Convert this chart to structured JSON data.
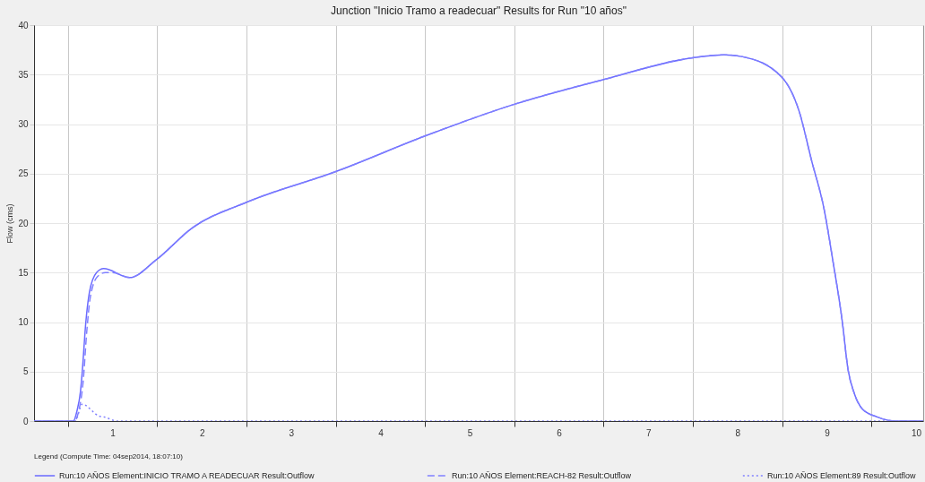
{
  "chart_data": {
    "type": "line",
    "title": "Junction \"Inicio Tramo a readecuar\" Results for Run \"10 años\"",
    "ylabel": "Flow (cms)",
    "legend_title": "Legend (Compute Time: 04sep2014, 18:07:10)",
    "legend": "bottom",
    "grid": true,
    "xlim": [
      0.12,
      10.08
    ],
    "ylim": [
      0,
      40
    ],
    "xticks": [
      {
        "value": 0.5,
        "label": null
      },
      1,
      {
        "value": 1.5,
        "label": null
      },
      2,
      {
        "value": 2.5,
        "label": null
      },
      3,
      {
        "value": 3.5,
        "label": null
      },
      4,
      {
        "value": 4.5,
        "label": null
      },
      5,
      {
        "value": 5.5,
        "label": null
      },
      6,
      {
        "value": 6.5,
        "label": null
      },
      7,
      {
        "value": 7.5,
        "label": null
      },
      8,
      {
        "value": 8.5,
        "label": null
      },
      9,
      {
        "value": 9.5,
        "label": null
      },
      10
    ],
    "yticks": [
      0,
      5,
      10,
      15,
      20,
      25,
      30,
      35,
      40
    ],
    "series": [
      {
        "name": "Run:10 AÑOS Element:INICIO TRAMO A READECUAR Result:Outflow",
        "color": "#6a6aff",
        "line_style": "solid",
        "x": [
          0.12,
          0.56,
          0.6,
          0.64,
          0.66,
          0.7,
          0.74,
          0.82,
          0.9,
          1.19,
          1.49,
          1.89,
          2.5,
          3.5,
          4.5,
          5.5,
          6.5,
          7.5,
          7.85,
          8.06,
          8.49,
          8.69,
          8.83,
          8.97,
          9.07,
          9.17,
          9.24,
          9.3,
          9.4,
          9.57,
          9.77,
          10.08
        ],
        "values": [
          0,
          0,
          1,
          3,
          5,
          10,
          13,
          15,
          15.4,
          14.5,
          16.3,
          19.5,
          22.1,
          25.2,
          28.8,
          32,
          34.5,
          36.7,
          37,
          36.8,
          34.8,
          31.3,
          26.3,
          21.4,
          16.1,
          10.3,
          5.1,
          3,
          1.2,
          0.4,
          0,
          0
        ]
      },
      {
        "name": "Run:10 AÑOS Element:REACH-82 Result:Outflow",
        "color": "#8080ff",
        "line_style": "dashed",
        "x": [
          0.12,
          0.57,
          0.62,
          0.67,
          0.71,
          0.75,
          0.83,
          0.92,
          1.0,
          1.19,
          1.49,
          1.89,
          2.5,
          3.5,
          4.5,
          5.5,
          6.5,
          7.5,
          7.85,
          8.06,
          8.49,
          8.69,
          8.83,
          8.97,
          9.07,
          9.17,
          9.24,
          9.3,
          9.4,
          9.57,
          9.77,
          10.08
        ],
        "values": [
          0,
          0,
          1,
          4,
          9,
          12.5,
          14.6,
          15,
          15,
          14.5,
          16.3,
          19.5,
          22.1,
          25.2,
          28.8,
          32,
          34.5,
          36.7,
          37,
          36.8,
          34.8,
          31.3,
          26.3,
          21.4,
          16.1,
          10.3,
          5.1,
          3,
          1.2,
          0.4,
          0,
          0
        ]
      },
      {
        "name": "Run:10 AÑOS Element:89 Result:Outflow",
        "color": "#8080ff",
        "line_style": "dotted",
        "x": [
          0.12,
          0.58,
          0.66,
          0.85,
          0.91,
          1.05,
          10.08
        ],
        "values": [
          0,
          0,
          1.7,
          0.5,
          0.4,
          0,
          0
        ]
      }
    ]
  }
}
